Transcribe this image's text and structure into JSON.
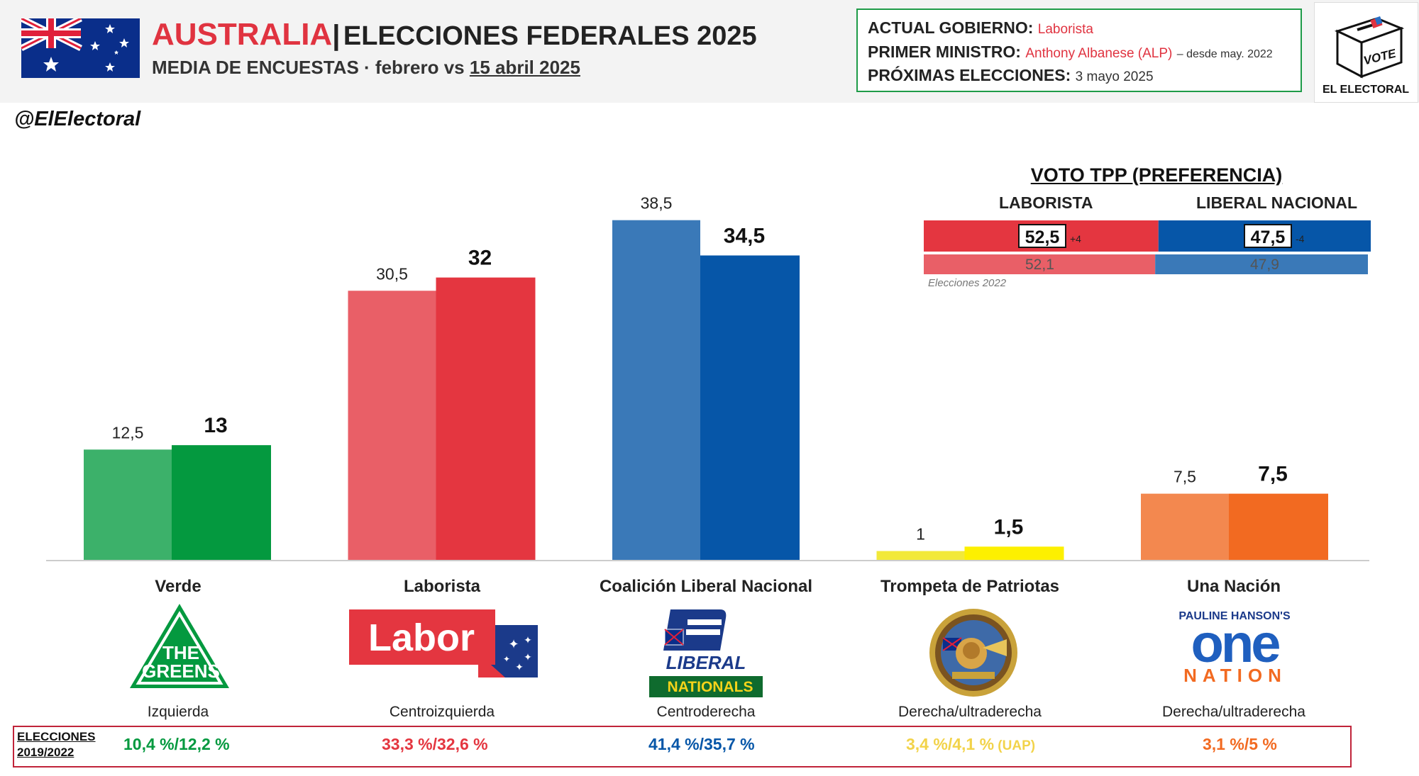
{
  "header": {
    "country": "AUSTRALIA",
    "separator": "|",
    "title": "ELECCIONES FEDERALES 2025",
    "subtitle_prefix": "MEDIA DE ENCUESTAS · febrero vs ",
    "subtitle_date": "15 abril 2025"
  },
  "government": {
    "gov_label": "ACTUAL GOBIERNO:",
    "gov_value": "Laborista",
    "pm_label": "PRIMER MINISTRO:",
    "pm_value": "Anthony Albanese (ALP)",
    "pm_note": "– desde may. 2022",
    "next_label": "PRÓXIMAS ELECCIONES:",
    "next_value": "3 mayo 2025"
  },
  "brand": {
    "logo_text": "VOTE",
    "logo_caption": "EL ELECTORAL",
    "handle": "@ElElectoral"
  },
  "chart_data": {
    "type": "bar",
    "categories": [
      "Verde",
      "Laborista",
      "Coalición Liberal Nacional",
      "Trompeta de Patriotas",
      "Una Nación"
    ],
    "series": [
      {
        "values": [
          12.5,
          30.5,
          38.5,
          1,
          7.5
        ]
      },
      {
        "values": [
          13,
          32,
          34.5,
          1.5,
          7.5
        ]
      }
    ],
    "value_labels_old": [
      "12,5",
      "30,5",
      "38,5",
      "1",
      "7,5"
    ],
    "value_labels_new": [
      "13",
      "32",
      "34,5",
      "1,5",
      "7,5"
    ],
    "colors_old": [
      "#3cb16a",
      "#e95f67",
      "#3a79b8",
      "#f2e93a",
      "#f3884f"
    ],
    "colors_new": [
      "#04993f",
      "#e43640",
      "#0656a8",
      "#fdf000",
      "#f26a21"
    ],
    "ylim": [
      0,
      40
    ],
    "grid": false
  },
  "parties": [
    {
      "name": "Verde",
      "ideology": "Izquierda",
      "logo": "greens-logo",
      "logo_text_1": "THE",
      "logo_text_2": "GREENS"
    },
    {
      "name": "Laborista",
      "ideology": "Centroizquierda",
      "logo": "labor-logo",
      "logo_text_1": "Labor"
    },
    {
      "name": "Coalición Liberal Nacional",
      "ideology": "Centroderecha",
      "logo": "liberal-nationals-logo",
      "logo_text_1": "LIBERAL",
      "logo_text_2": "NATIONALS"
    },
    {
      "name": "Trompeta de Patriotas",
      "ideology": "Derecha/ultraderecha",
      "logo": "trumpet-of-patriots-logo"
    },
    {
      "name": "Una Nación",
      "ideology": "Derecha/ultraderecha",
      "logo": "one-nation-logo",
      "logo_text_1": "PAULINE HANSON'S",
      "logo_text_2": "one",
      "logo_text_3": "NATION"
    }
  ],
  "tpp": {
    "title": "VOTO TPP (PREFERENCIA)",
    "left_party": "LABORISTA",
    "right_party": "LIBERAL NACIONAL",
    "left_value": "52,5",
    "left_diff": "+4",
    "right_value": "47,5",
    "right_diff": "-4",
    "left_prev": "52,1",
    "right_prev": "47,9",
    "left_share": 52.5,
    "left_prev_share": 52.1,
    "note": "Elecciones 2022",
    "color_left": "#e43640",
    "color_right": "#0656a8",
    "color_left_prev": "#e95f67",
    "color_right_prev": "#3a79b8"
  },
  "results": {
    "label_1": "ELECCIONES",
    "label_2": "2019/2022",
    "items": [
      {
        "text": "10,4 %/12,2 %",
        "color": "#04993f"
      },
      {
        "text": "33,3 %/32,6 %",
        "color": "#e43640"
      },
      {
        "text": "41,4 %/35,7 %",
        "color": "#0656a8"
      },
      {
        "text": "3,4 %/4,1 %",
        "extra": " (UAP)",
        "color": "#f2d34a"
      },
      {
        "text": "3,1 %/5 %",
        "color": "#f26a21"
      }
    ]
  }
}
